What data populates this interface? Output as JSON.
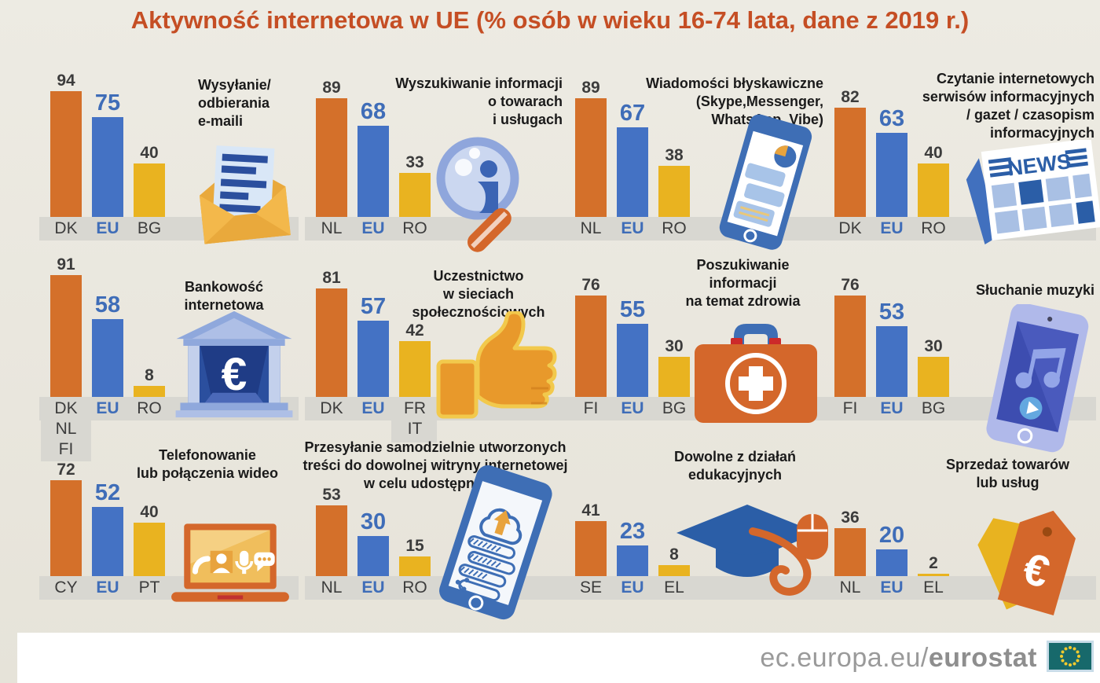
{
  "page_title": "Aktywność internetowa w UE (% osób w wieku 16-74 lata, dane z 2019 r.)",
  "unit": "%",
  "footer": {
    "url_regular": "ec.europa.eu/",
    "url_bold": "eurostat",
    "flag": "eu-flag-icon"
  },
  "colors": {
    "background": "#E9E6DD",
    "title_red": "#C54E24",
    "bar_orange": "#D4702A",
    "bar_blue": "#4472C4",
    "bar_yellow": "#E9B320",
    "eu_text_blue": "#3F6DB8",
    "baseline_gray": "#D8D7D1",
    "footer_text_gray": "#9A9A9A",
    "flag_teal": "#17696B"
  },
  "chart_data": [
    {
      "type": "bar",
      "title": "Wysyłanie/\nodbierania\ne-maili",
      "icon": "email-envelope-icon",
      "categories": [
        "DK",
        "EU",
        "BG"
      ],
      "values": [
        94,
        75,
        40
      ],
      "ylim": [
        0,
        100
      ],
      "highlight": "EU"
    },
    {
      "type": "bar",
      "title": "Wyszukiwanie informacji\no towarach\ni usługach",
      "icon": "search-info-icon",
      "categories": [
        "NL",
        "EU",
        "RO"
      ],
      "values": [
        89,
        68,
        33
      ],
      "ylim": [
        0,
        100
      ],
      "highlight": "EU"
    },
    {
      "type": "bar",
      "title": "Wiadomości błyskawiczne\n(Skype,Messenger,\nWhatsApp, Vibe)",
      "icon": "instant-messaging-phone-icon",
      "categories": [
        "NL",
        "EU",
        "RO"
      ],
      "values": [
        89,
        67,
        38
      ],
      "ylim": [
        0,
        100
      ],
      "highlight": "EU"
    },
    {
      "type": "bar",
      "title": "Czytanie internetowych\nserwisów informacyjnych\n/ gazet / czasopism\ninformacyjnych",
      "icon": "online-news-icon",
      "categories": [
        "DK",
        "EU",
        "RO"
      ],
      "values": [
        82,
        63,
        40
      ],
      "ylim": [
        0,
        100
      ],
      "highlight": "EU"
    },
    {
      "type": "bar",
      "title": "Bankowość\ninternetowa",
      "icon": "bank-euro-icon",
      "categories": [
        "DK\nNL\nFI",
        "EU",
        "RO"
      ],
      "values": [
        91,
        58,
        8
      ],
      "ylim": [
        0,
        100
      ],
      "highlight": "EU"
    },
    {
      "type": "bar",
      "title": "Uczestnictwo\nw sieciach\nspołecznościowych",
      "icon": "thumbs-up-icon",
      "categories": [
        "DK",
        "EU",
        "FR\nIT"
      ],
      "values": [
        81,
        57,
        42
      ],
      "ylim": [
        0,
        100
      ],
      "highlight": "EU"
    },
    {
      "type": "bar",
      "title": "Poszukiwanie\ninformacji\nna temat zdrowia",
      "icon": "health-kit-icon",
      "categories": [
        "FI",
        "EU",
        "BG"
      ],
      "values": [
        76,
        55,
        30
      ],
      "ylim": [
        0,
        100
      ],
      "highlight": "EU"
    },
    {
      "type": "bar",
      "title": "Słuchanie muzyki",
      "icon": "music-phone-icon",
      "categories": [
        "FI",
        "EU",
        "BG"
      ],
      "values": [
        76,
        53,
        30
      ],
      "ylim": [
        0,
        100
      ],
      "highlight": "EU"
    },
    {
      "type": "bar",
      "title": "Telefonowanie\nlub połączenia wideo",
      "icon": "video-call-laptop-icon",
      "categories": [
        "CY",
        "EU",
        "PT"
      ],
      "values": [
        72,
        52,
        40
      ],
      "ylim": [
        0,
        100
      ],
      "highlight": "EU"
    },
    {
      "type": "bar",
      "title": "Przesyłanie samodzielnie utworzonych\ntreści do dowolnej witryny internetowej\nw celu udostępnienia",
      "icon": "upload-content-phone-icon",
      "categories": [
        "NL",
        "EU",
        "RO"
      ],
      "values": [
        53,
        30,
        15
      ],
      "ylim": [
        0,
        100
      ],
      "highlight": "EU"
    },
    {
      "type": "bar",
      "title": "Dowolne z działań\nedukacyjnych",
      "icon": "education-cap-mouse-icon",
      "categories": [
        "SE",
        "EU",
        "EL"
      ],
      "values": [
        41,
        23,
        8
      ],
      "ylim": [
        0,
        100
      ],
      "highlight": "EU"
    },
    {
      "type": "bar",
      "title": "Sprzedaż towarów\nlub usług",
      "icon": "sell-tags-icon",
      "categories": [
        "NL",
        "EU",
        "EL"
      ],
      "values": [
        36,
        20,
        2
      ],
      "ylim": [
        0,
        100
      ],
      "highlight": "EU"
    }
  ]
}
